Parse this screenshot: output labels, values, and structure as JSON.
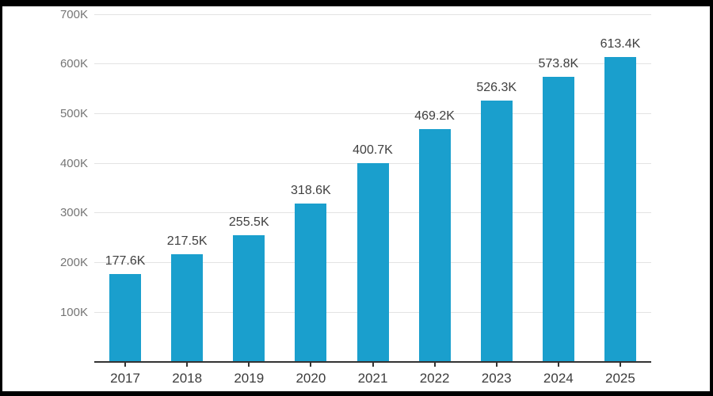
{
  "chart_data": {
    "type": "bar",
    "title": "",
    "xlabel": "",
    "ylabel": "",
    "categories": [
      "2017",
      "2018",
      "2019",
      "2020",
      "2021",
      "2022",
      "2023",
      "2024",
      "2025"
    ],
    "values": [
      177.6,
      217.5,
      255.5,
      318.6,
      400.7,
      469.2,
      526.3,
      573.8,
      613.4
    ],
    "value_labels": [
      "177.6K",
      "217.5K",
      "255.5K",
      "318.6K",
      "400.7K",
      "469.2K",
      "526.3K",
      "573.8K",
      "613.4K"
    ],
    "unit": "K",
    "ylim": [
      0,
      700
    ],
    "yticks": [
      {
        "value": 100,
        "label": "100K"
      },
      {
        "value": 200,
        "label": "200K"
      },
      {
        "value": 300,
        "label": "300K"
      },
      {
        "value": 400,
        "label": "400K"
      },
      {
        "value": 500,
        "label": "500K"
      },
      {
        "value": 600,
        "label": "600K"
      },
      {
        "value": 700,
        "label": "700K"
      }
    ],
    "grid": true,
    "legend": "none",
    "colors": {
      "bar": "#1A9FCD",
      "gridline": "#E3E3E3",
      "axis_line": "#333333",
      "tick_mark": "#333333",
      "ytick_label": "#757575",
      "xtick_label": "#3C3C3C",
      "value_label": "#404040",
      "background": "#FFFFFF",
      "frame": "#000000"
    }
  }
}
